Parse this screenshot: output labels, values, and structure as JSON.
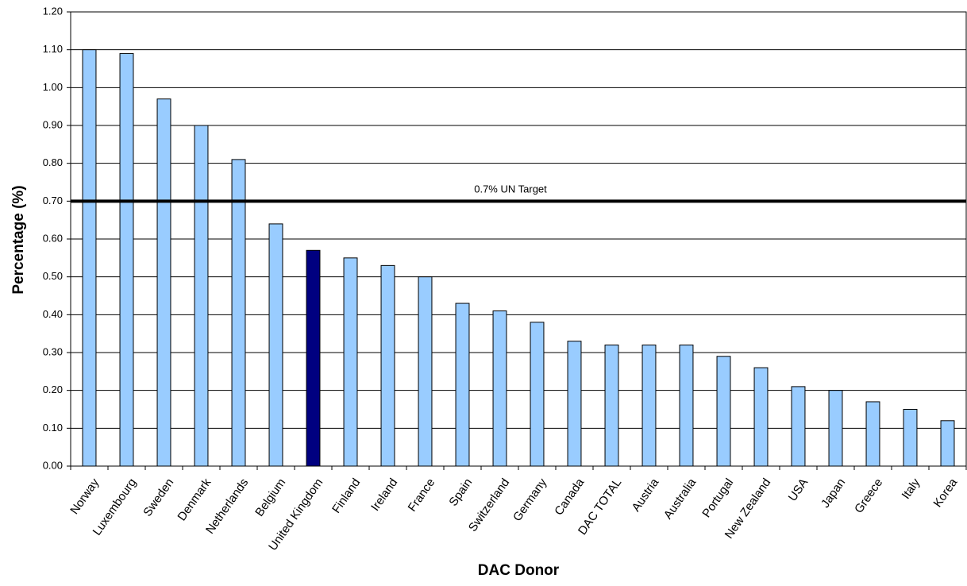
{
  "chart_data": {
    "type": "bar",
    "xlabel": "DAC Donor",
    "ylabel": "Percentage (%)",
    "ylim": [
      0,
      1.2
    ],
    "yticks": [
      "0.00",
      "0.10",
      "0.20",
      "0.30",
      "0.40",
      "0.50",
      "0.60",
      "0.70",
      "0.80",
      "0.90",
      "1.00",
      "1.10",
      "1.20"
    ],
    "grid": "horizontal",
    "categories": [
      "Norway",
      "Luxembourg",
      "Sweden",
      "Denmark",
      "Netherlands",
      "Belgium",
      "United Kingdom",
      "Finland",
      "Ireland",
      "France",
      "Spain",
      "Switzerland",
      "Germany",
      "Canada",
      "DAC TOTAL",
      "Austria",
      "Australia",
      "Portugal",
      "New Zealand",
      "USA",
      "Japan",
      "Greece",
      "Italy",
      "Korea"
    ],
    "values": [
      1.1,
      1.09,
      0.97,
      0.9,
      0.81,
      0.64,
      0.57,
      0.55,
      0.53,
      0.5,
      0.43,
      0.41,
      0.38,
      0.33,
      0.32,
      0.32,
      0.32,
      0.29,
      0.26,
      0.21,
      0.2,
      0.17,
      0.15,
      0.12
    ],
    "highlight_category": "United Kingdom",
    "colors": {
      "bar": "#99CCFF",
      "bar_highlight": "#000080",
      "bar_outline": "#000000",
      "gridline": "#000000",
      "target_line": "#000000"
    },
    "reference_line": {
      "value": 0.7,
      "label": "0.7% UN Target"
    }
  }
}
